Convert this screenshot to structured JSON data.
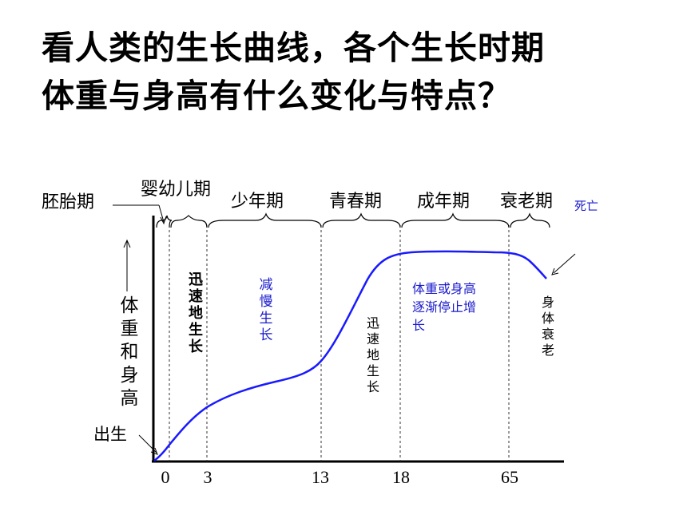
{
  "heading": {
    "line1": "看人类的生长曲线，各个生长时期",
    "line2": "体重与身高有什么变化与特点？"
  },
  "stages": {
    "embryo": "胚胎期",
    "infant": "婴幼儿期",
    "youth": "少年期",
    "puberty": "青春期",
    "adult": "成年期",
    "old_age": "衰老期",
    "death": "死亡"
  },
  "y_axis_label": [
    "体",
    "重",
    "和",
    "身",
    "高"
  ],
  "birth_label": "出生",
  "x_ticks": [
    "0",
    "3",
    "13",
    "18",
    "65"
  ],
  "annotations": {
    "infant_growth": [
      "迅",
      "速",
      "地",
      "生",
      "长"
    ],
    "slow_growth": [
      "减",
      "慢",
      "生",
      "长"
    ],
    "puberty_growth": [
      "迅",
      "速",
      "地",
      "生",
      "长"
    ],
    "adult_lines": [
      "体重或身高",
      "逐渐停止增",
      "长"
    ],
    "aging": [
      "身",
      "体",
      "衰",
      "老"
    ]
  },
  "colors": {
    "curve": "#1a1aff",
    "annotation_blue": "#1a1acc",
    "black": "#000000"
  }
}
